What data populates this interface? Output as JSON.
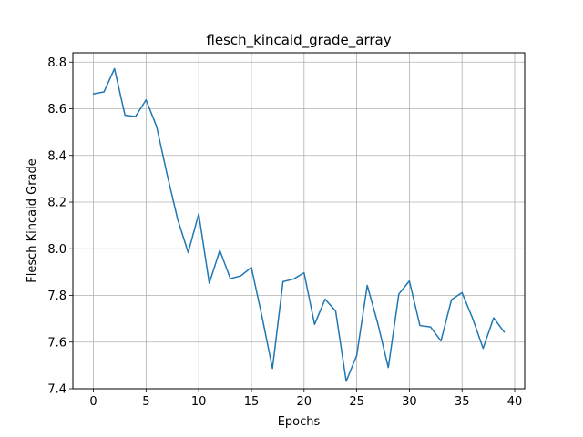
{
  "chart_data": {
    "type": "line",
    "title": "flesch_kincaid_grade_array",
    "xlabel": "Epochs",
    "ylabel": "Flesch Kincaid Grade",
    "xlim": [
      -1.95,
      40.95
    ],
    "ylim": [
      7.4,
      8.84
    ],
    "xticks": [
      0,
      5,
      10,
      15,
      20,
      25,
      30,
      35,
      40
    ],
    "yticks": [
      7.4,
      7.6,
      7.8,
      8.0,
      8.2,
      8.4,
      8.6,
      8.8
    ],
    "ytick_labels": [
      "7.4",
      "7.6",
      "7.8",
      "8.0",
      "8.2",
      "8.4",
      "8.6",
      "8.8"
    ],
    "grid": true,
    "line_color": "#1f77b4",
    "x": [
      0,
      1,
      2,
      3,
      4,
      5,
      6,
      7,
      8,
      9,
      10,
      11,
      12,
      13,
      14,
      15,
      16,
      17,
      18,
      19,
      20,
      21,
      22,
      23,
      24,
      25,
      26,
      27,
      28,
      29,
      30,
      31,
      32,
      33,
      34,
      35,
      36,
      37,
      38,
      39
    ],
    "series": [
      {
        "values": [
          8.664,
          8.672,
          8.772,
          8.572,
          8.567,
          8.638,
          8.524,
          8.318,
          8.126,
          7.984,
          8.15,
          7.852,
          7.993,
          7.872,
          7.884,
          7.92,
          7.711,
          7.487,
          7.859,
          7.87,
          7.897,
          7.676,
          7.784,
          7.733,
          7.432,
          7.543,
          7.843,
          7.68,
          7.491,
          7.806,
          7.862,
          7.671,
          7.665,
          7.605,
          7.782,
          7.812,
          7.702,
          7.573,
          7.704,
          7.643
        ]
      }
    ]
  }
}
